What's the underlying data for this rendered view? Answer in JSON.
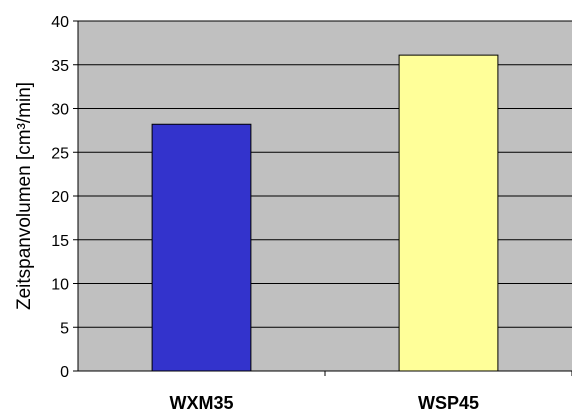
{
  "chart_data": {
    "type": "bar",
    "categories": [
      "WXM35",
      "WSP45"
    ],
    "values": [
      28.2,
      36.1
    ],
    "title": "",
    "xlabel": "",
    "ylabel": "Zeitspanvolumen [cm³/min]",
    "ylim": [
      0,
      40
    ],
    "y_ticks": [
      "0",
      "5",
      "10",
      "15",
      "20",
      "25",
      "30",
      "35",
      "40"
    ],
    "grid": true,
    "legend": "none",
    "colors": {
      "plot_background": "#C0C0C0",
      "gridline": "#000000",
      "bar_fills": [
        "#3333CC",
        "#FFFF99"
      ],
      "bar_stroke": "#000000"
    }
  }
}
